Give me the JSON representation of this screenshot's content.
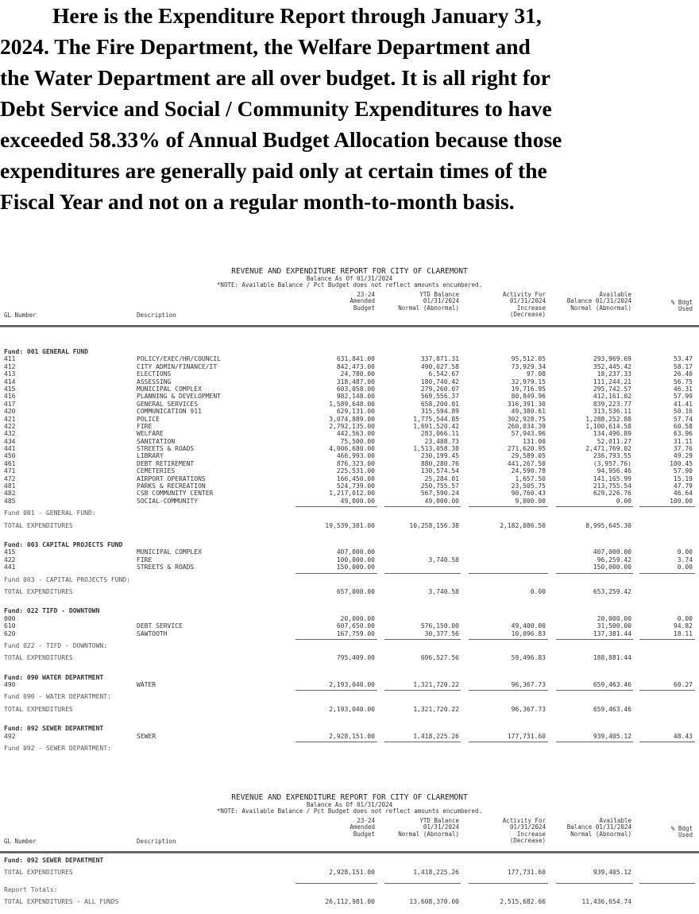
{
  "intro": {
    "lines": [
      "Here is the Expenditure Report through January 31,",
      "2024.  The Fire Department, the Welfare Department and",
      "the Water Department are all over budget.  It is all right for",
      "Debt Service and Social / Community Expenditures to have",
      "exceeded 58.33% of Annual Budget Allocation because those",
      "expenditures are generally paid only at certain times of the",
      "Fiscal Year and not on a regular month-to-month basis."
    ]
  },
  "report_header": {
    "title": "REVENUE AND EXPENDITURE REPORT FOR CITY OF CLAREMONT",
    "balance_as_of": "Balance As Of 01/31/2024",
    "note": "*NOTE: Available Balance / Pct Budget does not reflect amounts encumbered.",
    "columns": {
      "gl_number": "GL Number",
      "description": "Description",
      "budget": "23-24\nAmended\nBudget",
      "ytd": "YTD Balance\n01/31/2024\nNormal (Abnormal)",
      "activity": "Activity For\n01/31/2024\nIncrease\n(Decrease)",
      "available": "Available\nBalance 01/31/2024\nNormal (Abnormal)",
      "pct": "% Bdgt\nUsed"
    }
  },
  "page1": {
    "funds": [
      {
        "header": "Fund: 001 GENERAL FUND",
        "rows": [
          [
            "411",
            "POLICY/EXEC/HR/COUNCIL",
            "631,841.00",
            "337,871.31",
            "95,512.05",
            "293,969.69",
            "53.47"
          ],
          [
            "412",
            "CITY ADMIN/FINANCE/IT",
            "842,473.00",
            "490,027.58",
            "73,929.34",
            "352,445.42",
            "58.17"
          ],
          [
            "413",
            "ELECTIONS",
            "24,780.00",
            "6,542.67",
            "97.08",
            "18,237.33",
            "26.40"
          ],
          [
            "414",
            "ASSESSING",
            "318,487.00",
            "180,740.42",
            "32,979.15",
            "111,244.21",
            "56.75"
          ],
          [
            "415",
            "MUNICIPAL  COMPLEX",
            "603,058.00",
            "279,260.07",
            "19,716.95",
            "295,742.57",
            "46.31"
          ],
          [
            "416",
            "PLANNING & DEVELOPMENT",
            "982,148.00",
            "569,556.37",
            "80,849.96",
            "412,161.02",
            "57.99"
          ],
          [
            "417",
            "GENERAL SERVICES",
            "1,589,648.00",
            "658,200.01",
            "316,391.30",
            "839,223.77",
            "41.41"
          ],
          [
            "420",
            "COMMUNICATION 911",
            "629,131.00",
            "315,594.89",
            "49,380.61",
            "313,536.11",
            "50.16"
          ],
          [
            "421",
            "POLICE",
            "3,074,889.00",
            "1,775,544.85",
            "302,928.75",
            "1,288,252.88",
            "57.74"
          ],
          [
            "422",
            "FIRE",
            "2,792,135.00",
            "1,691,520.42",
            "260,034.39",
            "1,100,614.58",
            "60.58"
          ],
          [
            "432",
            "WELFARE",
            "442,563.00",
            "283,066.11",
            "57,943.96",
            "134,496.89",
            "63.96"
          ],
          [
            "434",
            "SANITATION",
            "75,500.00",
            "23,488.73",
            "131.00",
            "52,011.27",
            "31.11"
          ],
          [
            "441",
            "STREETS & ROADS",
            "4,006,680.00",
            "1,513,058.38",
            "271,620.95",
            "2,471,769.02",
            "37.76"
          ],
          [
            "450",
            "LIBRARY",
            "466,993.00",
            "230,199.45",
            "29,589.05",
            "236,793.55",
            "49.29"
          ],
          [
            "461",
            "DEBT RETIREMENT",
            "876,323.00",
            "880,280.76",
            "441,267.50",
            "(3,957.76)",
            "100.45"
          ],
          [
            "471",
            "CEMETERIES",
            "225,531.00",
            "130,574.54",
            "24,590.78",
            "94,956.46",
            "57.90"
          ],
          [
            "472",
            "AIRPORT OPERATIONS",
            "166,450.00",
            "25,284.01",
            "1,657.50",
            "141,165.99",
            "15.19"
          ],
          [
            "481",
            "PARKS & RECREATION",
            "524,739.00",
            "250,755.57",
            "23,505.75",
            "213,755.54",
            "47.79"
          ],
          [
            "482",
            "CSB COMMUNITY CENTER",
            "1,217,012.00",
            "567,590.24",
            "90,760.43",
            "629,226.76",
            "46.64"
          ],
          [
            "485",
            "SOCIAL-COMMUNITY",
            "49,000.00",
            "49,000.00",
            "9,000.00",
            "0.00",
            "100.00"
          ]
        ],
        "subtotal_label": "Fund 001 - GENERAL FUND:",
        "total_label": "TOTAL EXPENDITURES",
        "totals": [
          "19,539,381.00",
          "10,258,156.38",
          "2,182,086.50",
          "8,995,645.30",
          ""
        ]
      },
      {
        "header": "Fund: 003 CAPITAL PROJECTS FUND",
        "rows": [
          [
            "415",
            "MUNICIPAL  COMPLEX",
            "407,000.00",
            "",
            "",
            "407,000.00",
            "0.00"
          ],
          [
            "422",
            "FIRE",
            "100,000.00",
            "3,740.58",
            "",
            "96,259.42",
            "3.74"
          ],
          [
            "441",
            "STREETS & ROADS",
            "150,000.00",
            "",
            "",
            "150,000.00",
            "0.00"
          ]
        ],
        "subtotal_label": "Fund 003 - CAPITAL PROJECTS FUND:",
        "total_label": "TOTAL EXPENDITURES",
        "totals": [
          "657,000.00",
          "3,740.58",
          "0.00",
          "653,259.42",
          ""
        ]
      },
      {
        "header": "Fund: 022 TIFD - DOWNTOWN",
        "rows": [
          [
            "000",
            "",
            "20,000.00",
            "",
            "",
            "20,000.00",
            "0.00"
          ],
          [
            "610",
            "DEBT SERVICE",
            "607,650.00",
            "576,150.00",
            "49,400.00",
            "31,500.00",
            "94.82"
          ],
          [
            "620",
            "SAWTOOTH",
            "167,759.00",
            "30,377.56",
            "10,096.83",
            "137,381.44",
            "18.11"
          ]
        ],
        "subtotal_label": "Fund 022 - TIFD - DOWNTOWN:",
        "total_label": "TOTAL EXPENDITURES",
        "totals": [
          "795,409.00",
          "606,527.56",
          "59,496.83",
          "188,881.44",
          ""
        ]
      },
      {
        "header": "Fund: 090 WATER DEPARTMENT",
        "rows": [
          [
            "490",
            "WATER",
            "2,193,040.00",
            "1,321,720.22",
            "96,367.73",
            "659,463.46",
            "60.27"
          ]
        ],
        "subtotal_label": "Fund 090 - WATER DEPARTMENT:",
        "total_label": "TOTAL EXPENDITURES",
        "totals": [
          "2,193,040.00",
          "1,321,720.22",
          "96,367.73",
          "659,463.46",
          ""
        ]
      },
      {
        "header": "Fund: 092 SEWER DEPARTMENT",
        "rows": [
          [
            "492",
            "SEWER",
            "2,928,151.00",
            "1,418,225.26",
            "177,731.60",
            "939,405.12",
            "48.43"
          ]
        ],
        "subtotal_label": "Fund 092 - SEWER DEPARTMENT:"
      }
    ]
  },
  "page2": {
    "fund_header": "Fund: 092 SEWER DEPARTMENT",
    "total_label": "TOTAL EXPENDITURES",
    "totals": [
      "2,928,151.00",
      "1,418,225.26",
      "177,731.60",
      "939,405.12",
      ""
    ],
    "report_totals_label": "Report Totals:",
    "all_funds_label": "TOTAL EXPENDITURES - ALL FUNDS",
    "all_funds_totals": [
      "26,112,981.00",
      "13,608,370.00",
      "2,515,682.66",
      "11,436,654.74",
      ""
    ]
  }
}
